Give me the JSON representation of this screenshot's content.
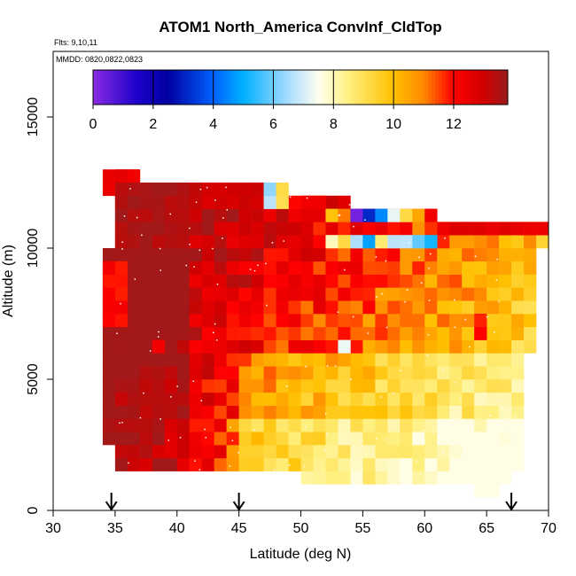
{
  "chart_data": {
    "type": "heatmap",
    "title": "ATOM1 North_America ConvInf_CldTop",
    "flights_label": "Flts: 9,10,11",
    "dates_label": "MMDD: 0820,0822,0823",
    "xlabel": "Latitude (deg N)",
    "ylabel": "Altitude (m)",
    "xlim": [
      30,
      70
    ],
    "ylim": [
      0,
      17500
    ],
    "x_ticks": [
      30,
      35,
      40,
      45,
      50,
      55,
      60,
      65,
      70
    ],
    "y_ticks": [
      0,
      5000,
      10000,
      15000
    ],
    "colorbar": {
      "min": 0,
      "max": 13.8,
      "ticks": [
        0,
        2,
        4,
        6,
        8,
        10,
        12
      ],
      "stops": [
        {
          "v": 0,
          "color": "#8a2be2"
        },
        {
          "v": 1.5,
          "color": "#1a00c8"
        },
        {
          "v": 2.5,
          "color": "#0000a0"
        },
        {
          "v": 4,
          "color": "#0060ff"
        },
        {
          "v": 5,
          "color": "#00b0ff"
        },
        {
          "v": 6.5,
          "color": "#a8dcff"
        },
        {
          "v": 7.5,
          "color": "#fffff0"
        },
        {
          "v": 8.5,
          "color": "#fff080"
        },
        {
          "v": 10,
          "color": "#ffc000"
        },
        {
          "v": 11,
          "color": "#ff8800"
        },
        {
          "v": 12,
          "color": "#ff0000"
        },
        {
          "v": 13,
          "color": "#d00000"
        },
        {
          "v": 13.8,
          "color": "#9c1c1c"
        }
      ]
    },
    "arrows_lat": [
      34.7,
      45,
      67
    ],
    "heatmap": {
      "lat_bin": 1,
      "alt_bin": 500,
      "regions": [
        {
          "lat": [
            34,
            37
          ],
          "alt": [
            12000,
            13000
          ],
          "v": 12.5
        },
        {
          "lat": [
            35,
            41
          ],
          "alt": [
            10000,
            12500
          ],
          "v": 13.5
        },
        {
          "lat": [
            41,
            47
          ],
          "alt": [
            11500,
            12500
          ],
          "v": 13.0
        },
        {
          "lat": [
            47,
            48
          ],
          "alt": [
            11500,
            12500
          ],
          "v": 6.5
        },
        {
          "lat": [
            48,
            49
          ],
          "alt": [
            11500,
            12500
          ],
          "v": 9.0
        },
        {
          "lat": [
            50,
            52
          ],
          "alt": [
            11000,
            12000
          ],
          "v": 12.5
        },
        {
          "lat": [
            52,
            53
          ],
          "alt": [
            11000,
            11500
          ],
          "v": 10.0
        },
        {
          "lat": [
            53,
            54
          ],
          "alt": [
            11000,
            11500
          ],
          "v": 11.0
        },
        {
          "lat": [
            54,
            55
          ],
          "alt": [
            11000,
            11500
          ],
          "v": 0.5
        },
        {
          "lat": [
            55,
            56
          ],
          "alt": [
            11000,
            11500
          ],
          "v": 3.0
        },
        {
          "lat": [
            56,
            57
          ],
          "alt": [
            11000,
            11500
          ],
          "v": 4.5
        },
        {
          "lat": [
            57,
            58
          ],
          "alt": [
            11000,
            11500
          ],
          "v": 7.0
        },
        {
          "lat": [
            58,
            59
          ],
          "alt": [
            11000,
            11500
          ],
          "v": 9.0
        },
        {
          "lat": [
            59,
            60
          ],
          "alt": [
            11000,
            11500
          ],
          "v": 10.5
        },
        {
          "lat": [
            60,
            61
          ],
          "alt": [
            11000,
            11500
          ],
          "v": 12.5
        },
        {
          "lat": [
            61,
            70
          ],
          "alt": [
            10500,
            11000
          ],
          "v": 12.5
        },
        {
          "lat": [
            52,
            53
          ],
          "alt": [
            10000,
            10500
          ],
          "v": 8.0
        },
        {
          "lat": [
            53,
            54
          ],
          "alt": [
            10000,
            10500
          ],
          "v": 9.0
        },
        {
          "lat": [
            54,
            55
          ],
          "alt": [
            10000,
            10500
          ],
          "v": 6.5
        },
        {
          "lat": [
            55,
            56
          ],
          "alt": [
            10000,
            10500
          ],
          "v": 5.0
        },
        {
          "lat": [
            56,
            57
          ],
          "alt": [
            10000,
            10500
          ],
          "v": 8.5
        },
        {
          "lat": [
            57,
            58
          ],
          "alt": [
            10000,
            10500
          ],
          "v": 6.8
        },
        {
          "lat": [
            58,
            59
          ],
          "alt": [
            10000,
            10500
          ],
          "v": 7.0
        },
        {
          "lat": [
            59,
            60
          ],
          "alt": [
            10000,
            10500
          ],
          "v": 6.0
        },
        {
          "lat": [
            60,
            61
          ],
          "alt": [
            10000,
            10500
          ],
          "v": 5.0
        },
        {
          "lat": [
            37,
            40
          ],
          "alt": [
            3500,
            5000
          ],
          "v": 13.2
        },
        {
          "lat": [
            35,
            37
          ],
          "alt": [
            3000,
            4500
          ],
          "v": 13.4
        },
        {
          "lat": [
            53,
            54
          ],
          "alt": [
            6000,
            6500
          ],
          "v": 7.5
        },
        {
          "lat": [
            38,
            39
          ],
          "alt": [
            6000,
            6500
          ],
          "v": 12.5
        },
        {
          "lat": [
            34,
            36
          ],
          "alt": [
            7000,
            9500
          ],
          "v": 12.0
        },
        {
          "lat": [
            64,
            65
          ],
          "alt": [
            6500,
            7500
          ],
          "v": 12.0
        }
      ]
    }
  }
}
